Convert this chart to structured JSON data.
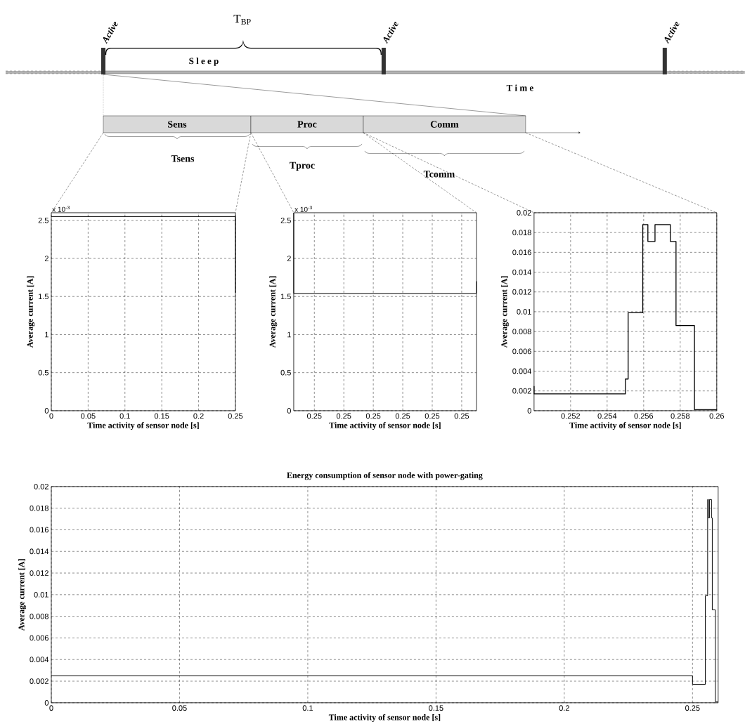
{
  "chart_data": [
    {
      "type": "other",
      "annotations": [
        "Active",
        "Active",
        "Active",
        "T$_{BP}$",
        "S l e e p",
        "T i m e",
        "Sens",
        "Proc",
        "Comm",
        "Tsens",
        "Tproc",
        "Tcomm"
      ]
    },
    {
      "type": "line",
      "xlabel": "Time activity of sensor node [s]",
      "ylabel": "Average current [A]",
      "annotations": [
        "x 10$^{-3}$"
      ],
      "xlim": [
        0,
        0.25
      ],
      "ylim": [
        0,
        2.6
      ],
      "xticks": [
        0,
        0.05,
        0.1,
        0.15,
        0.2,
        0.25
      ],
      "yticks": [
        0,
        0.5,
        1,
        1.5,
        2,
        2.5
      ],
      "grid": true,
      "line_style": "solid",
      "series": [
        {
          "color": "#000000",
          "x": [
            0,
            0.25,
            0.25
          ],
          "values": [
            2.55,
            2.55,
            1.55
          ]
        }
      ]
    },
    {
      "type": "line",
      "xlabel": "Time activity of sensor node [s]",
      "ylabel": "Average current [A]",
      "annotations": [
        "x 10$^{-3}$"
      ],
      "xlim": [
        0.24986,
        0.2511
      ],
      "ylim": [
        0,
        2.6
      ],
      "xticks": [
        {
          "value": 0.25,
          "label": "0.25"
        },
        {
          "value": 0.2502,
          "label": "0.25"
        },
        {
          "value": 0.2504,
          "label": "0.25"
        },
        {
          "value": 0.2506,
          "label": "0.25"
        },
        {
          "value": 0.2508,
          "label": "0.25"
        },
        {
          "value": 0.251,
          "label": "0.25"
        }
      ],
      "yticks": [
        0,
        0.5,
        1,
        1.5,
        2,
        2.5
      ],
      "grid": true,
      "line_style": "solid",
      "series": [
        {
          "color": "#000000",
          "x": [
            0.24986,
            0.24986,
            0.2511,
            0.2511
          ],
          "values": [
            2.6,
            1.54,
            1.54,
            1.7
          ]
        }
      ]
    },
    {
      "type": "line",
      "xlabel": "Time activity of sensor node [s]",
      "ylabel": "Average current [A]",
      "xlim": [
        0.25,
        0.26
      ],
      "ylim": [
        0,
        0.02
      ],
      "xticks": [
        0.252,
        0.254,
        0.256,
        0.258,
        0.26
      ],
      "yticks": [
        0,
        0.002,
        0.004,
        0.006,
        0.008,
        0.01,
        0.012,
        0.014,
        0.016,
        0.018,
        0.02
      ],
      "grid": true,
      "line_style": "solid",
      "series": [
        {
          "color": "#000000",
          "x": [
            0.25,
            0.25,
            0.255,
            0.255,
            0.25515,
            0.25515,
            0.25595,
            0.25595,
            0.25623,
            0.25623,
            0.25662,
            0.25662,
            0.25746,
            0.25746,
            0.25777,
            0.25777,
            0.25878,
            0.25878,
            0.26
          ],
          "values": [
            0.0025,
            0.0017,
            0.0017,
            0.0032,
            0.0032,
            0.0099,
            0.0099,
            0.0188,
            0.0188,
            0.0171,
            0.0171,
            0.0188,
            0.0188,
            0.0171,
            0.0171,
            0.0086,
            0.0086,
            0.0001,
            0.0001
          ]
        }
      ]
    },
    {
      "type": "line",
      "title": "Energy consumption of sensor node with power-gating",
      "xlabel": "Time activity of sensor node [s]",
      "ylabel": "Average current [A]",
      "xlim": [
        0,
        0.26
      ],
      "ylim": [
        0,
        0.02
      ],
      "xticks": [
        0,
        0.05,
        0.1,
        0.15,
        0.2,
        0.25
      ],
      "yticks": [
        0,
        0.002,
        0.004,
        0.006,
        0.008,
        0.01,
        0.012,
        0.014,
        0.016,
        0.018,
        0.02
      ],
      "grid": true,
      "line_style": "solid",
      "series": [
        {
          "color": "#000000",
          "x": [
            0,
            0.25,
            0.25,
            0.255,
            0.255,
            0.2559,
            0.2559,
            0.2562,
            0.2562,
            0.2566,
            0.2566,
            0.2574,
            0.2574,
            0.2577,
            0.2577,
            0.2589,
            0.2589,
            0.26
          ],
          "values": [
            0.0025,
            0.0025,
            0.0017,
            0.0017,
            0.0099,
            0.0099,
            0.0188,
            0.0188,
            0.0171,
            0.0171,
            0.0188,
            0.0188,
            0.0171,
            0.0171,
            0.0086,
            0.0086,
            0.0001,
            0.0001
          ]
        }
      ]
    }
  ]
}
